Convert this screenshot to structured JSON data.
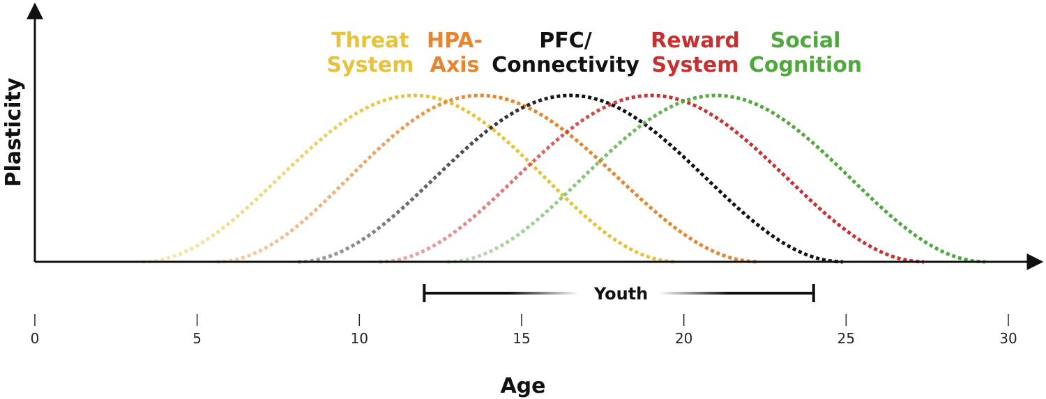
{
  "chart_data": {
    "type": "line",
    "xlabel": "Age",
    "ylabel": "Plasticity",
    "xlim": [
      0,
      30
    ],
    "ylim": [
      0,
      1
    ],
    "x_ticks": [
      "0",
      "5",
      "10",
      "15",
      "20",
      "25",
      "30"
    ],
    "grid": false,
    "legend": "top",
    "bracket": {
      "label": "Youth",
      "start": 12,
      "end": 24
    },
    "series": [
      {
        "name_lines": [
          "Threat",
          "System"
        ],
        "color": "#E8C23A",
        "start": 3.3,
        "peak": 11.7,
        "end": 19.8,
        "peak_value": 1.0
      },
      {
        "name_lines": [
          "HPA-",
          "Axis"
        ],
        "color": "#E6852E",
        "start": 5.6,
        "peak": 13.7,
        "end": 22.3,
        "peak_value": 1.0
      },
      {
        "name_lines": [
          "PFC/",
          "Connectivity"
        ],
        "color": "#111111",
        "start": 8.1,
        "peak": 16.5,
        "end": 24.9,
        "peak_value": 1.0
      },
      {
        "name_lines": [
          "Reward",
          "System"
        ],
        "color": "#C8302F",
        "start": 10.6,
        "peak": 19.0,
        "end": 27.4,
        "peak_value": 1.0
      },
      {
        "name_lines": [
          "Social",
          "Cognition"
        ],
        "color": "#4FA83D",
        "start": 12.7,
        "peak": 21.0,
        "end": 29.3,
        "peak_value": 1.0
      }
    ]
  }
}
